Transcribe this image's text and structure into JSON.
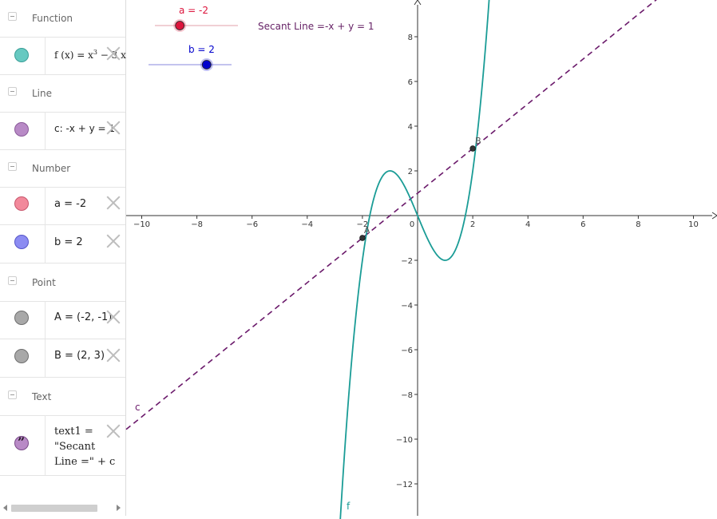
{
  "algebra": {
    "groups": [
      {
        "title": "Function",
        "items": [
          {
            "name": "f",
            "label_main": "f (x) = x",
            "label_sup": "3",
            "label_rest": " − 3 x",
            "color": "#67c9c1"
          }
        ]
      },
      {
        "title": "Line",
        "items": [
          {
            "name": "c",
            "label": "c: -x + y = 1",
            "color": "#b88ac6"
          }
        ]
      },
      {
        "title": "Number",
        "items": [
          {
            "name": "a",
            "label": "a = -2",
            "color": "#f2899b"
          },
          {
            "name": "b",
            "label": "b = 2",
            "color": "#8c8cf2"
          }
        ]
      },
      {
        "title": "Point",
        "items": [
          {
            "name": "A",
            "label": "A = (-2, -1)",
            "color": "#a8a8a8"
          },
          {
            "name": "B",
            "label": "B = (2, 3)",
            "color": "#a8a8a8"
          }
        ]
      },
      {
        "title": "Text",
        "items": [
          {
            "name": "text1",
            "label": "text1 = \"Secant Line =\" + c",
            "color": "#b88ac6"
          }
        ]
      }
    ]
  },
  "graphics": {
    "slider_a": {
      "label": "a = -2",
      "color": "#dc143c",
      "value": -2,
      "min": -5,
      "max": 5
    },
    "slider_b": {
      "label": "b = 2",
      "color": "#0000cc",
      "value": 2,
      "min": -5,
      "max": 5
    },
    "secant_text": "Secant Line =-x + y = 1",
    "axes": {
      "x_ticks": [
        "−10",
        "−8",
        "−6",
        "−4",
        "−2",
        "0",
        "2",
        "4",
        "6",
        "8",
        "10"
      ],
      "y_ticks": [
        "−12",
        "−10",
        "−8",
        "−6",
        "−4",
        "−2",
        "2",
        "4",
        "6",
        "8"
      ]
    },
    "curve_label": "f",
    "line_label": "c",
    "point_A": {
      "label": "A",
      "x": -2,
      "y": -1
    },
    "point_B": {
      "label": "B",
      "x": 2,
      "y": 3
    },
    "colors": {
      "curve": "#1a9c96",
      "line": "#6b1a6b",
      "point": "#333333"
    }
  },
  "chart_data": {
    "type": "line",
    "functions": [
      {
        "name": "f",
        "expression": "x^3 - 3x",
        "color": "#1a9c96"
      },
      {
        "name": "c",
        "expression": "-x + y = 1",
        "style": "dashed",
        "color": "#6b1a6b"
      }
    ],
    "points": [
      {
        "name": "A",
        "x": -2,
        "y": -1
      },
      {
        "name": "B",
        "x": 2,
        "y": 3
      }
    ],
    "xlim": [
      -10.5,
      10.5
    ],
    "ylim": [
      -13,
      9.5
    ]
  }
}
